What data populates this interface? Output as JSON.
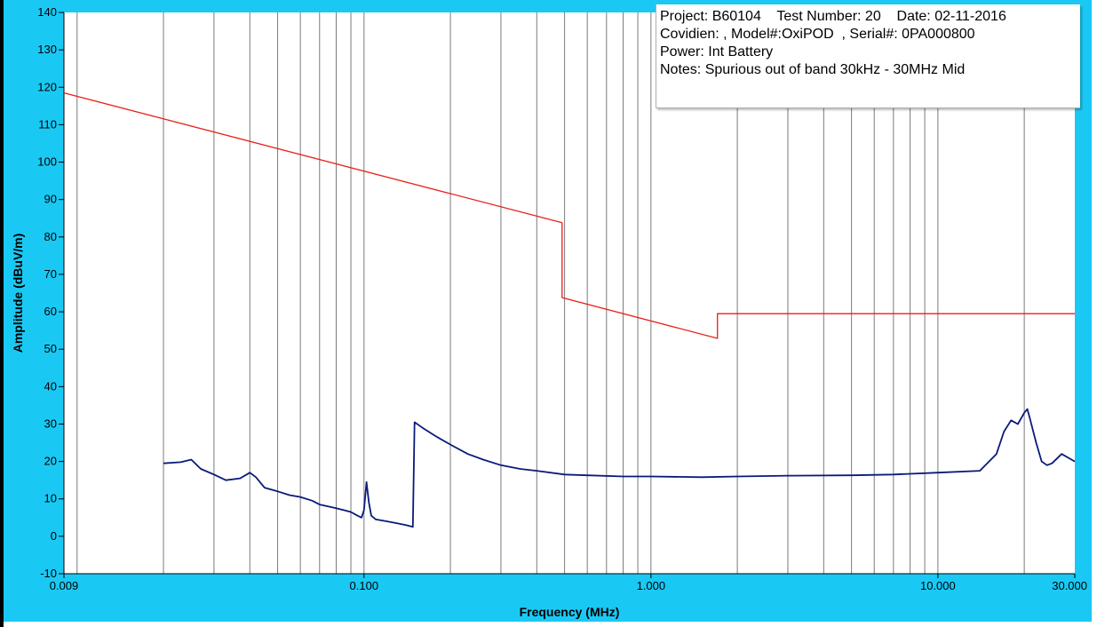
{
  "chart_data": {
    "type": "line",
    "xlabel": "Frequency (MHz)",
    "ylabel": "Amplitude (dBuV/m)",
    "x_scale": "log",
    "xlim": [
      0.009,
      30
    ],
    "ylim": [
      -10,
      140
    ],
    "x_ticks": [
      {
        "value": 0.009,
        "label": "0.009"
      },
      {
        "value": 0.1,
        "label": "0.100"
      },
      {
        "value": 1,
        "label": "1.000"
      },
      {
        "value": 10,
        "label": "10.000"
      },
      {
        "value": 30,
        "label": "30.000"
      }
    ],
    "y_ticks": [
      -10,
      0,
      10,
      20,
      30,
      40,
      50,
      60,
      70,
      80,
      90,
      100,
      110,
      120,
      130,
      140
    ],
    "grid": "vertical log-decade gridlines",
    "series": [
      {
        "color": "#e8201a",
        "x": [
          0.009,
          0.49,
          0.49,
          1.705,
          1.705,
          30
        ],
        "y": [
          118.5,
          83.8,
          63.8,
          52.9,
          59.5,
          59.5
        ]
      },
      {
        "color": "#0a1a7a",
        "x": [
          0.02,
          0.023,
          0.025,
          0.027,
          0.03,
          0.033,
          0.037,
          0.04,
          0.042,
          0.045,
          0.05,
          0.055,
          0.06,
          0.066,
          0.07,
          0.075,
          0.08,
          0.085,
          0.09,
          0.095,
          0.098,
          0.1,
          0.102,
          0.104,
          0.106,
          0.11,
          0.12,
          0.13,
          0.14,
          0.148,
          0.15,
          0.16,
          0.18,
          0.2,
          0.23,
          0.26,
          0.3,
          0.35,
          0.4,
          0.5,
          0.6,
          0.8,
          1,
          1.5,
          2,
          3,
          5,
          7,
          10,
          14,
          16,
          17,
          18,
          19,
          20,
          20.5,
          21,
          22,
          23,
          24,
          25,
          27,
          30
        ],
        "y": [
          19.5,
          19.8,
          20.5,
          18,
          16.5,
          15,
          15.5,
          17,
          15.8,
          13,
          12,
          11,
          10.5,
          9.5,
          8.5,
          8,
          7.5,
          7,
          6.5,
          5.5,
          5,
          7,
          14.5,
          9,
          5.5,
          4.5,
          4,
          3.5,
          3,
          2.5,
          30.5,
          29,
          26.5,
          24.5,
          22,
          20.5,
          19,
          18,
          17.5,
          16.5,
          16.3,
          16,
          16,
          15.8,
          16,
          16.2,
          16.3,
          16.5,
          17,
          17.5,
          22,
          28,
          31,
          30,
          33,
          34,
          31,
          25,
          20,
          19,
          19.5,
          22,
          20
        ]
      }
    ]
  },
  "info": {
    "line1": "Project: B60104    Test Number: 20    Date: 02-11-2016",
    "line2": "Covidien: , Model#:OxiPOD  , Serial#: 0PA000800",
    "line3": "Power: Int Battery",
    "line4": "Notes: Spurious out of band 30kHz - 30MHz Mid"
  },
  "colors": {
    "frame": "#19c9f4",
    "plot_bg": "#ffffff",
    "grid": "#7a7a7a",
    "border": "#000000"
  }
}
